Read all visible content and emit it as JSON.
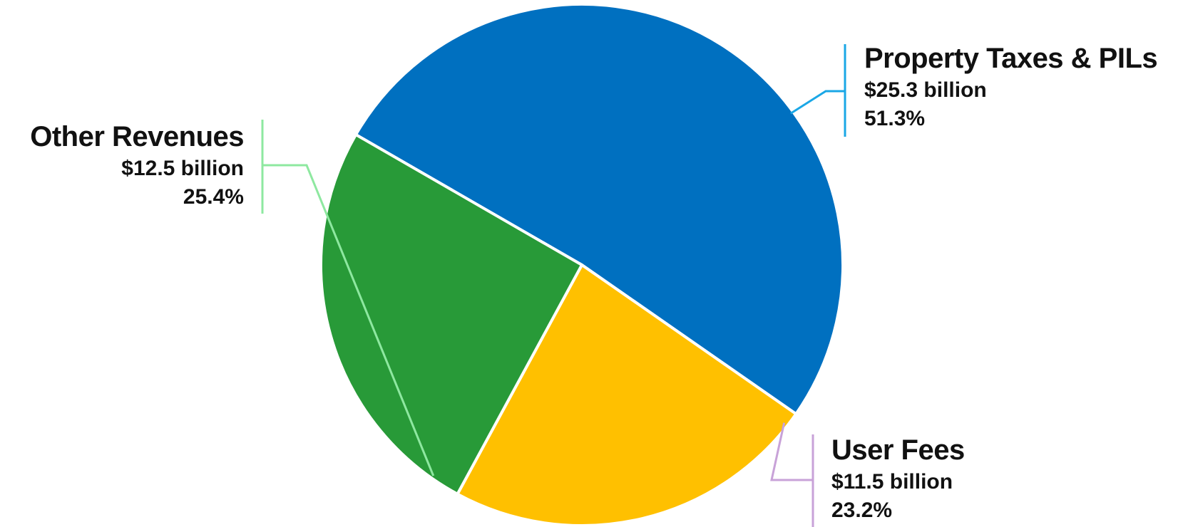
{
  "chart_data": {
    "type": "pie",
    "title": "",
    "slices": [
      {
        "name": "Property Taxes & PILs",
        "amount": "$25.3 billion",
        "percent_label": "51.3%",
        "value": 51.3,
        "color": "#0070C0",
        "leader_color": "#1AA7E6"
      },
      {
        "name": "User Fees",
        "amount": "$11.5 billion",
        "percent_label": "23.2%",
        "value": 23.2,
        "color": "#FFC000",
        "leader_color": "#C8A2D8"
      },
      {
        "name": "Other Revenues",
        "amount": "$12.5 billion",
        "percent_label": "25.4%",
        "value": 25.4,
        "color": "#289A38",
        "leader_color": "#8EE8A0"
      }
    ],
    "start_angle_deg": -150,
    "direction": "clockwise",
    "legend": "none"
  }
}
